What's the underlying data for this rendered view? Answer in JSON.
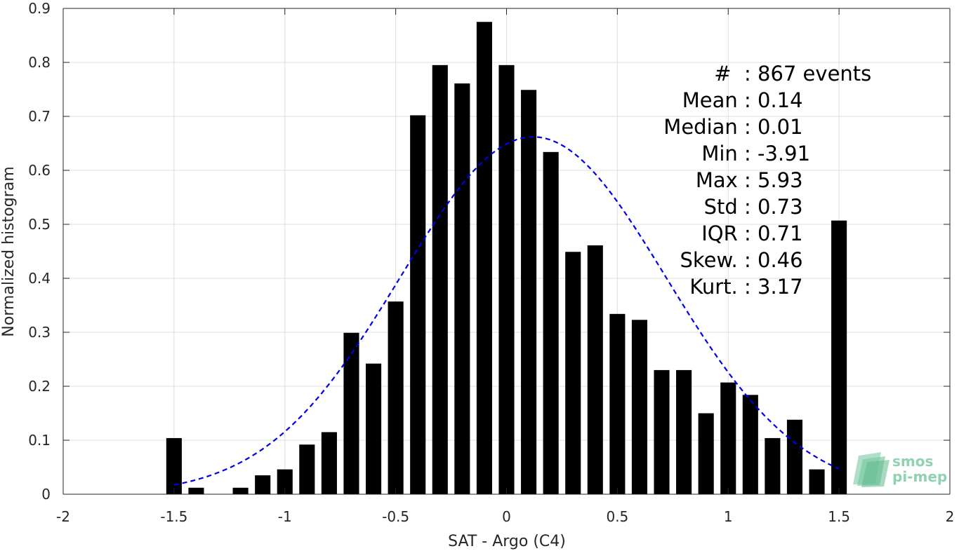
{
  "chart_data": {
    "type": "bar",
    "title": "",
    "xlabel": "SAT - Argo (C4)",
    "ylabel": "Normalized histogram",
    "xlim": [
      -2,
      2
    ],
    "ylim": [
      0,
      0.9
    ],
    "x_ticks": [
      -2,
      -1.5,
      -1,
      -0.5,
      0,
      0.5,
      1,
      1.5,
      2
    ],
    "x_tick_labels": [
      "-2",
      "-1.5",
      "-1",
      "-0.5",
      "0",
      "0.5",
      "1",
      "1.5",
      "2"
    ],
    "y_ticks": [
      0,
      0.1,
      0.2,
      0.3,
      0.4,
      0.5,
      0.6,
      0.7,
      0.8,
      0.9
    ],
    "y_tick_labels": [
      "0",
      "0.1",
      "0.2",
      "0.3",
      "0.4",
      "0.5",
      "0.6",
      "0.7",
      "0.8",
      "0.9"
    ],
    "grid": true,
    "bar_color": "#000000",
    "bar_width": 0.07,
    "bars": {
      "x": [
        -1.5,
        -1.4,
        -1.3,
        -1.2,
        -1.1,
        -1.0,
        -0.9,
        -0.8,
        -0.7,
        -0.6,
        -0.5,
        -0.4,
        -0.3,
        -0.2,
        -0.1,
        0.0,
        0.1,
        0.2,
        0.3,
        0.4,
        0.5,
        0.6,
        0.7,
        0.8,
        0.9,
        1.0,
        1.1,
        1.2,
        1.3,
        1.4,
        1.5
      ],
      "values": [
        0.104,
        0.012,
        0.0,
        0.012,
        0.035,
        0.046,
        0.092,
        0.115,
        0.299,
        0.242,
        0.357,
        0.702,
        0.795,
        0.761,
        0.875,
        0.795,
        0.749,
        0.634,
        0.449,
        0.461,
        0.334,
        0.323,
        0.23,
        0.23,
        0.15,
        0.207,
        0.184,
        0.104,
        0.138,
        0.046,
        0.507
      ]
    },
    "fit_curve": {
      "type": "gaussian",
      "color": "#0000ee",
      "style": "dashed",
      "mean": 0.12,
      "sigma": 0.6,
      "peak": 0.662,
      "x_range": [
        -1.5,
        1.5
      ]
    },
    "annotations": [
      {
        "label": "#  ",
        "value": ": 867 events"
      },
      {
        "label": "Mean ",
        "value": ": 0.14"
      },
      {
        "label": "Median ",
        "value": ": 0.01"
      },
      {
        "label": "Min ",
        "value": ": -3.91"
      },
      {
        "label": "Max ",
        "value": ": 5.93"
      },
      {
        "label": "Std ",
        "value": ": 0.73"
      },
      {
        "label": "IQR ",
        "value": ": 0.71"
      },
      {
        "label": "Skew. ",
        "value": ": 0.46"
      },
      {
        "label": "Kurt. ",
        "value": ": 3.17"
      }
    ]
  },
  "logo": {
    "line1": "smos",
    "line2": "pi-mep",
    "color": "#8fd1b0"
  }
}
